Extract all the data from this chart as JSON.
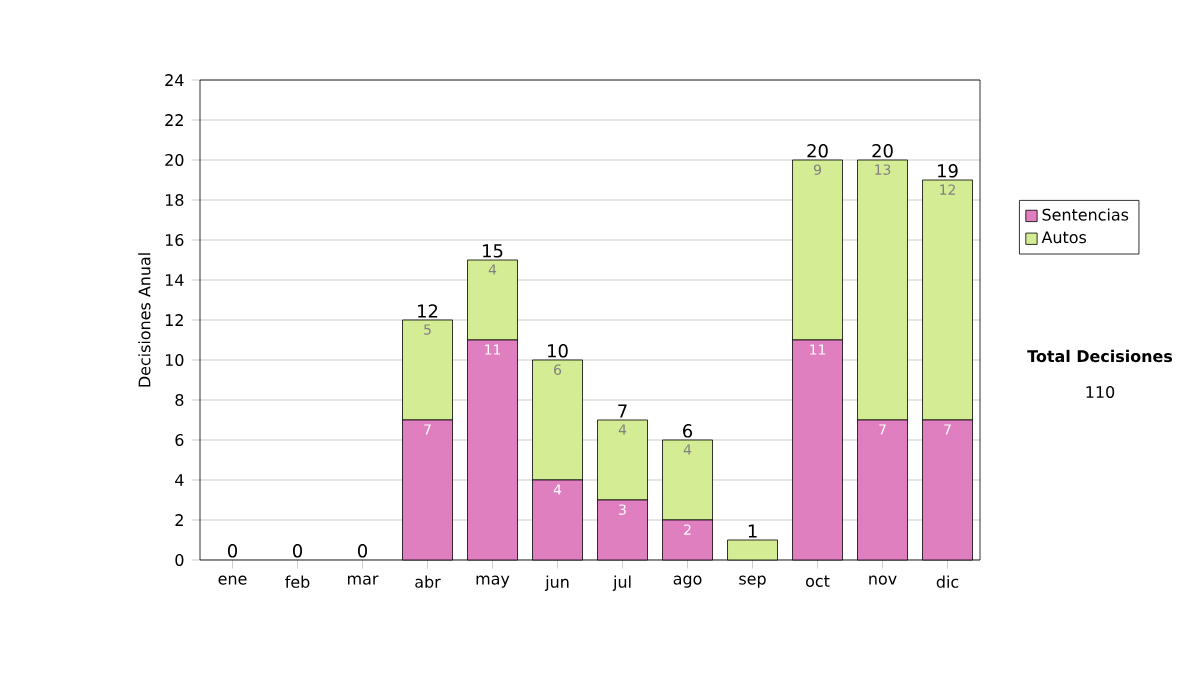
{
  "chart_data": {
    "type": "bar",
    "stacked": true,
    "ylabel": "Decisiones Anual",
    "categories": [
      "ene",
      "feb",
      "mar",
      "abr",
      "may",
      "jun",
      "jul",
      "ago",
      "sep",
      "oct",
      "nov",
      "dic"
    ],
    "series": [
      {
        "name": "Sentencias",
        "color": "#e07fc0",
        "values": [
          0,
          0,
          0,
          7,
          11,
          4,
          3,
          2,
          0,
          11,
          7,
          7
        ],
        "value_labels": [
          null,
          null,
          null,
          "7",
          "11",
          "4",
          "3",
          "2",
          null,
          "11",
          "7",
          "7"
        ]
      },
      {
        "name": "Autos",
        "color": "#d4ec94",
        "values": [
          0,
          0,
          0,
          5,
          4,
          6,
          4,
          4,
          1,
          9,
          13,
          12
        ],
        "value_labels": [
          null,
          null,
          null,
          "5",
          "4",
          "6",
          "4",
          "4",
          null,
          "9",
          "13",
          "12"
        ]
      }
    ],
    "totals": [
      "0",
      "0",
      "0",
      "12",
      "15",
      "10",
      "7",
      "6",
      "1",
      "20",
      "20",
      "19"
    ],
    "ylim": [
      0,
      24
    ],
    "yticks": [
      0,
      2,
      4,
      6,
      8,
      10,
      12,
      14,
      16,
      18,
      20,
      22,
      24
    ],
    "grid": "y",
    "legend": "right",
    "annotations": [
      "Total Decisiones",
      "110"
    ]
  }
}
